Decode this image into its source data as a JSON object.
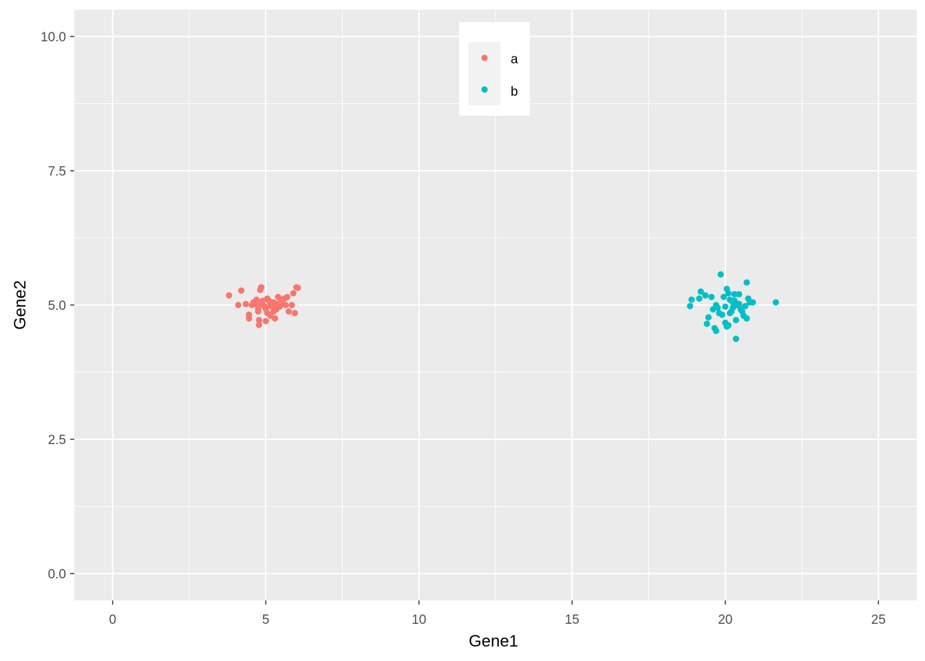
{
  "chart_data": {
    "type": "scatter",
    "title": "",
    "xlabel": "Gene1",
    "ylabel": "Gene2",
    "xlim": [
      -1.25,
      26.25
    ],
    "ylim": [
      -0.5,
      10.5
    ],
    "x_ticks": [
      0,
      5,
      10,
      15,
      20,
      25
    ],
    "x_tick_labels": [
      "0",
      "5",
      "10",
      "15",
      "20",
      "25"
    ],
    "y_ticks": [
      0.0,
      2.5,
      5.0,
      7.5,
      10.0
    ],
    "y_tick_labels": [
      "0.0",
      "2.5",
      "5.0",
      "7.5",
      "10.0"
    ],
    "grid": true,
    "legend_position": "top-center",
    "series": [
      {
        "name": "a",
        "color": "#F8766D",
        "points": [
          [
            3.8,
            5.18
          ],
          [
            4.2,
            5.27
          ],
          [
            4.1,
            5.0
          ],
          [
            4.35,
            5.02
          ],
          [
            4.45,
            4.75
          ],
          [
            4.45,
            4.82
          ],
          [
            4.55,
            5.0
          ],
          [
            4.6,
            5.05
          ],
          [
            4.7,
            5.1
          ],
          [
            4.75,
            4.93
          ],
          [
            4.75,
            4.88
          ],
          [
            4.78,
            4.72
          ],
          [
            4.78,
            4.63
          ],
          [
            4.82,
            5.28
          ],
          [
            4.85,
            5.33
          ],
          [
            4.85,
            5.02
          ],
          [
            4.9,
            5.08
          ],
          [
            4.95,
            4.98
          ],
          [
            5.0,
            4.93
          ],
          [
            5.0,
            4.7
          ],
          [
            5.05,
            4.85
          ],
          [
            5.1,
            5.08
          ],
          [
            5.15,
            4.8
          ],
          [
            5.2,
            4.97
          ],
          [
            5.25,
            5.05
          ],
          [
            5.25,
            4.88
          ],
          [
            5.3,
            4.75
          ],
          [
            5.35,
            5.02
          ],
          [
            5.4,
            5.15
          ],
          [
            5.45,
            4.97
          ],
          [
            5.5,
            5.1
          ],
          [
            5.55,
            5.02
          ],
          [
            5.6,
            5.12
          ],
          [
            5.65,
            5.0
          ],
          [
            5.7,
            5.15
          ],
          [
            5.75,
            4.88
          ],
          [
            5.85,
            5.0
          ],
          [
            5.9,
            5.22
          ],
          [
            5.95,
            4.85
          ],
          [
            6.0,
            5.33
          ],
          [
            6.05,
            5.32
          ],
          [
            5.15,
            5.0
          ],
          [
            4.65,
            5.02
          ],
          [
            5.05,
            5.12
          ],
          [
            5.35,
            4.92
          ]
        ]
      },
      {
        "name": "b",
        "color": "#00BFC4",
        "points": [
          [
            18.85,
            4.98
          ],
          [
            18.9,
            5.1
          ],
          [
            19.15,
            5.12
          ],
          [
            19.2,
            5.25
          ],
          [
            19.35,
            5.18
          ],
          [
            19.4,
            4.65
          ],
          [
            19.45,
            4.77
          ],
          [
            19.55,
            5.15
          ],
          [
            19.6,
            4.92
          ],
          [
            19.65,
            4.57
          ],
          [
            19.7,
            4.52
          ],
          [
            19.7,
            5.0
          ],
          [
            19.75,
            4.95
          ],
          [
            19.8,
            4.85
          ],
          [
            19.85,
            5.57
          ],
          [
            19.9,
            4.82
          ],
          [
            19.95,
            5.15
          ],
          [
            20.0,
            4.97
          ],
          [
            20.0,
            4.67
          ],
          [
            20.05,
            5.3
          ],
          [
            20.05,
            4.6
          ],
          [
            20.1,
            4.62
          ],
          [
            20.1,
            5.22
          ],
          [
            20.15,
            4.85
          ],
          [
            20.2,
            4.88
          ],
          [
            20.25,
            5.05
          ],
          [
            20.3,
            5.2
          ],
          [
            20.3,
            5.08
          ],
          [
            20.35,
            4.37
          ],
          [
            20.35,
            4.72
          ],
          [
            20.4,
            5.0
          ],
          [
            20.45,
            5.02
          ],
          [
            20.5,
            4.92
          ],
          [
            20.55,
            4.88
          ],
          [
            20.6,
            4.8
          ],
          [
            20.65,
            4.98
          ],
          [
            20.7,
            5.42
          ],
          [
            20.7,
            4.75
          ],
          [
            20.75,
            5.12
          ],
          [
            20.8,
            5.05
          ],
          [
            20.9,
            5.05
          ],
          [
            21.65,
            5.05
          ],
          [
            20.15,
            5.1
          ],
          [
            20.45,
            5.2
          ],
          [
            20.25,
            4.95
          ]
        ]
      }
    ]
  }
}
